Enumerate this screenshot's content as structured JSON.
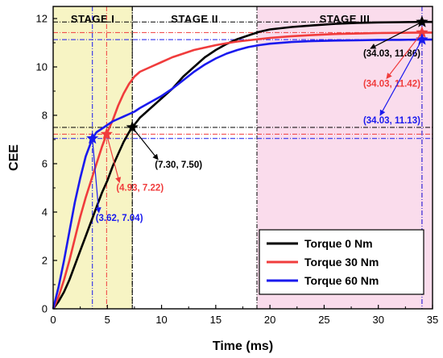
{
  "chart_data": {
    "type": "line",
    "xlabel": "Time (ms)",
    "ylabel": "CEE",
    "xlim": [
      0,
      35
    ],
    "ylim": [
      0,
      12.5
    ],
    "xticks": [
      "0",
      "5",
      "10",
      "15",
      "20",
      "25",
      "30",
      "35"
    ],
    "yticks": [
      "0",
      "2",
      "4",
      "6",
      "8",
      "10",
      "12"
    ],
    "stages": [
      {
        "label": "STAGE I",
        "x_range": [
          0,
          7.3
        ],
        "color": "#f7f4c4"
      },
      {
        "label": "STAGE II",
        "x_range": [
          7.3,
          18.8
        ],
        "color": "#ffffff"
      },
      {
        "label": "STAGE III",
        "x_range": [
          18.8,
          35
        ],
        "color": "#fadcec"
      }
    ],
    "series": [
      {
        "name": "Torque  0 Nm",
        "color": "#000000",
        "x": [
          0,
          0.5,
          1,
          1.5,
          2,
          2.5,
          3,
          3.5,
          4,
          4.5,
          5,
          5.5,
          6,
          6.5,
          7,
          7.3,
          8,
          9,
          10,
          11,
          12,
          13,
          14,
          15,
          16,
          17,
          18,
          19,
          20,
          22,
          24,
          26,
          28,
          30,
          32,
          34,
          34.03,
          35
        ],
        "y": [
          0,
          0.3,
          0.7,
          1.2,
          1.8,
          2.4,
          3.0,
          3.6,
          4.2,
          4.8,
          5.3,
          5.9,
          6.4,
          6.9,
          7.3,
          7.5,
          7.9,
          8.3,
          8.7,
          9.1,
          9.6,
          10.0,
          10.4,
          10.7,
          10.95,
          11.15,
          11.3,
          11.45,
          11.55,
          11.65,
          11.72,
          11.78,
          11.82,
          11.84,
          11.85,
          11.86,
          11.86,
          11.86
        ]
      },
      {
        "name": "Torque 30 Nm",
        "color": "#f03c3c",
        "x": [
          0,
          0.5,
          1,
          1.5,
          2,
          2.5,
          3,
          3.5,
          4,
          4.5,
          4.93,
          5.5,
          6,
          6.5,
          7,
          7.5,
          8,
          9,
          10,
          11,
          12,
          13,
          14,
          15,
          16,
          17,
          18,
          20,
          22,
          24,
          26,
          28,
          30,
          32,
          34,
          34.03,
          35
        ],
        "y": [
          0,
          0.5,
          1.2,
          2.0,
          2.9,
          3.8,
          4.6,
          5.3,
          6.0,
          6.7,
          7.22,
          7.8,
          8.4,
          8.9,
          9.3,
          9.6,
          9.8,
          10.0,
          10.2,
          10.4,
          10.55,
          10.7,
          10.8,
          10.9,
          10.98,
          11.05,
          11.1,
          11.2,
          11.27,
          11.32,
          11.36,
          11.38,
          11.4,
          11.41,
          11.42,
          11.42,
          11.42
        ]
      },
      {
        "name": "Torque 60 Nm",
        "color": "#1a1aee",
        "x": [
          0,
          0.5,
          1,
          1.5,
          2,
          2.5,
          3,
          3.62,
          4,
          4.5,
          5,
          5.5,
          6,
          6.5,
          7,
          7.5,
          8,
          9,
          10,
          11,
          12,
          13,
          14,
          15,
          16,
          17,
          18,
          19,
          20,
          22,
          24,
          26,
          28,
          30,
          32,
          34,
          34.03,
          35
        ],
        "y": [
          0,
          0.9,
          2.0,
          3.2,
          4.4,
          5.4,
          6.3,
          7.04,
          7.3,
          7.45,
          7.6,
          7.75,
          7.85,
          7.95,
          8.05,
          8.15,
          8.3,
          8.55,
          8.8,
          9.1,
          9.45,
          9.8,
          10.1,
          10.35,
          10.55,
          10.7,
          10.82,
          10.9,
          10.96,
          11.03,
          11.07,
          11.09,
          11.1,
          11.12,
          11.12,
          11.13,
          11.13,
          11.13
        ]
      }
    ],
    "markers": [
      {
        "series": "Torque  0 Nm",
        "x": 7.3,
        "y": 7.5,
        "label": "(7.30, 7.50)",
        "color": "#000000"
      },
      {
        "series": "Torque 30 Nm",
        "x": 4.93,
        "y": 7.22,
        "label": "(4.93, 7.22)",
        "color": "#f03c3c"
      },
      {
        "series": "Torque 60 Nm",
        "x": 3.62,
        "y": 7.04,
        "label": "(3.62, 7.04)",
        "color": "#1a1aee"
      },
      {
        "series": "Torque  0 Nm",
        "x": 34.03,
        "y": 11.86,
        "label": "(34.03, 11.86)",
        "color": "#000000"
      },
      {
        "series": "Torque 30 Nm",
        "x": 34.03,
        "y": 11.42,
        "label": "(34.03, 11.42)",
        "color": "#f03c3c"
      },
      {
        "series": "Torque 60 Nm",
        "x": 34.03,
        "y": 11.13,
        "label": "(34.03, 11.13)",
        "color": "#1a1aee"
      }
    ],
    "legend_position": "bottom-right",
    "grid": false
  }
}
